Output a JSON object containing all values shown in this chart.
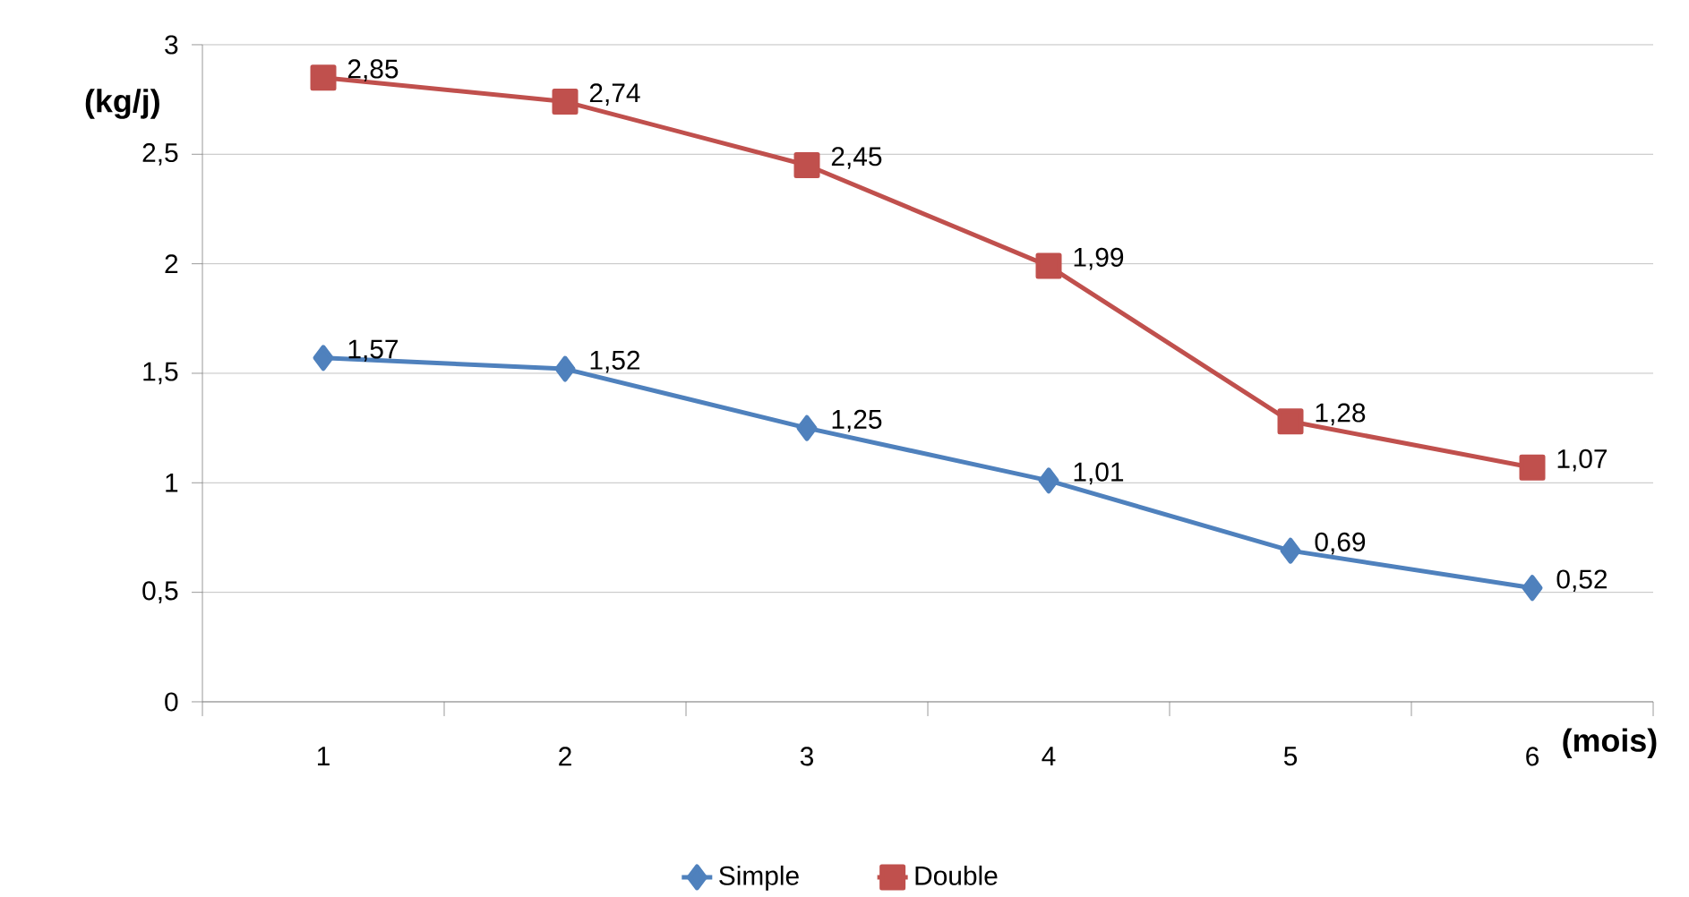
{
  "chart_data": {
    "type": "line",
    "xlabel": "(mois)",
    "ylabel": "(kg/j)",
    "categories": [
      "1",
      "2",
      "3",
      "4",
      "5",
      "6"
    ],
    "ylim": [
      0,
      3
    ],
    "yticks": [
      0,
      {
        "value": 0.5,
        "label": "0,5"
      },
      1,
      {
        "value": 1.5,
        "label": "1,5"
      },
      2,
      {
        "value": 2.5,
        "label": "2,5"
      },
      3
    ],
    "grid": "y",
    "legend": "bottom",
    "line_style": "solid",
    "series": [
      {
        "name": "Simple",
        "color": "#4f81bd",
        "marker": "diamond",
        "values": [
          1.57,
          1.52,
          1.25,
          1.01,
          0.69,
          0.52
        ],
        "value_labels": [
          "1,57",
          "1,52",
          "1,25",
          "1,01",
          "0,69",
          "0,52"
        ]
      },
      {
        "name": "Double",
        "color": "#c0504d",
        "marker": "square",
        "values": [
          2.85,
          2.74,
          2.45,
          1.99,
          1.28,
          1.07
        ],
        "value_labels": [
          "2,85",
          "2,74",
          "2,45",
          "1,99",
          "1,28",
          "1,07"
        ]
      }
    ]
  }
}
